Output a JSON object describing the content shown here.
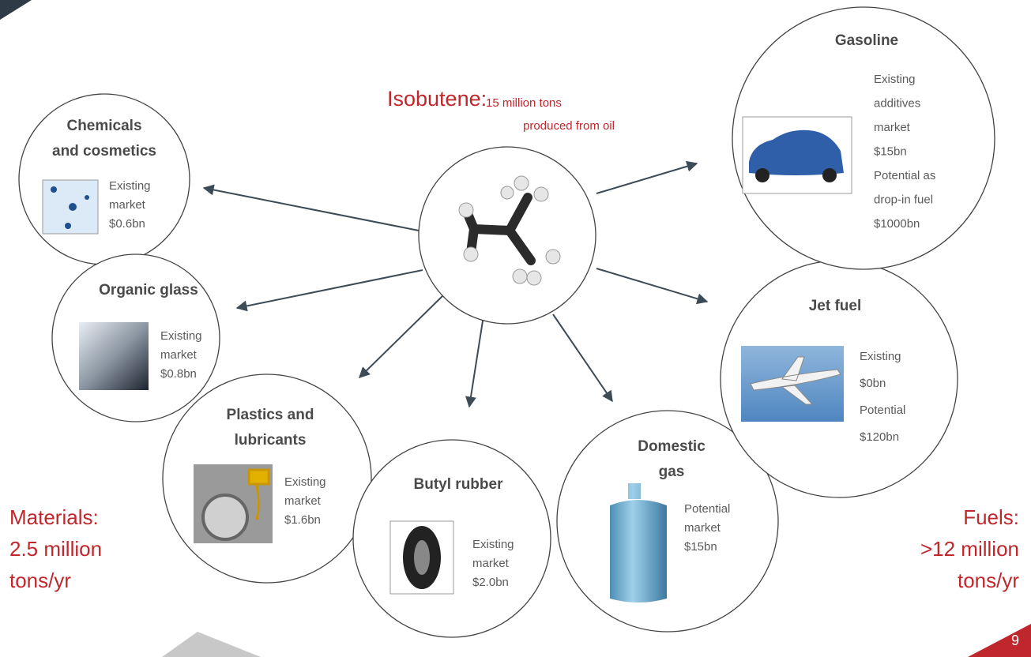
{
  "center": {
    "title": "Isobutene:",
    "subtitle": [
      "15 million tons",
      "produced from oil"
    ]
  },
  "nodes": [
    {
      "title": [
        "Chemicals",
        "and cosmetics"
      ],
      "details": [
        "Existing",
        "market",
        "$0.6bn"
      ]
    },
    {
      "title": [
        "Organic glass"
      ],
      "details": [
        "Existing",
        "market",
        "$0.8bn"
      ]
    },
    {
      "title": [
        "Plastics and",
        "lubricants"
      ],
      "details": [
        "Existing",
        "market",
        "$1.6bn"
      ]
    },
    {
      "title": [
        "Butyl rubber"
      ],
      "details": [
        "Existing",
        "market",
        "$2.0bn"
      ]
    },
    {
      "title": [
        "Domestic",
        "gas"
      ],
      "details": [
        "Potential",
        "market",
        "$15bn"
      ]
    },
    {
      "title": [
        "Jet fuel"
      ],
      "details": [
        "Existing",
        "$0bn",
        "Potential",
        "$120bn"
      ]
    },
    {
      "title": [
        "Gasoline"
      ],
      "details": [
        "Existing",
        "additives",
        "market",
        "$15bn",
        "Potential as",
        "drop-in fuel",
        "$1000bn"
      ]
    }
  ],
  "materials": [
    "Materials:",
    "2.5 million",
    "tons/yr"
  ],
  "fuels": [
    "Fuels:",
    ">12 million",
    "tons/yr"
  ],
  "page_number": "9"
}
